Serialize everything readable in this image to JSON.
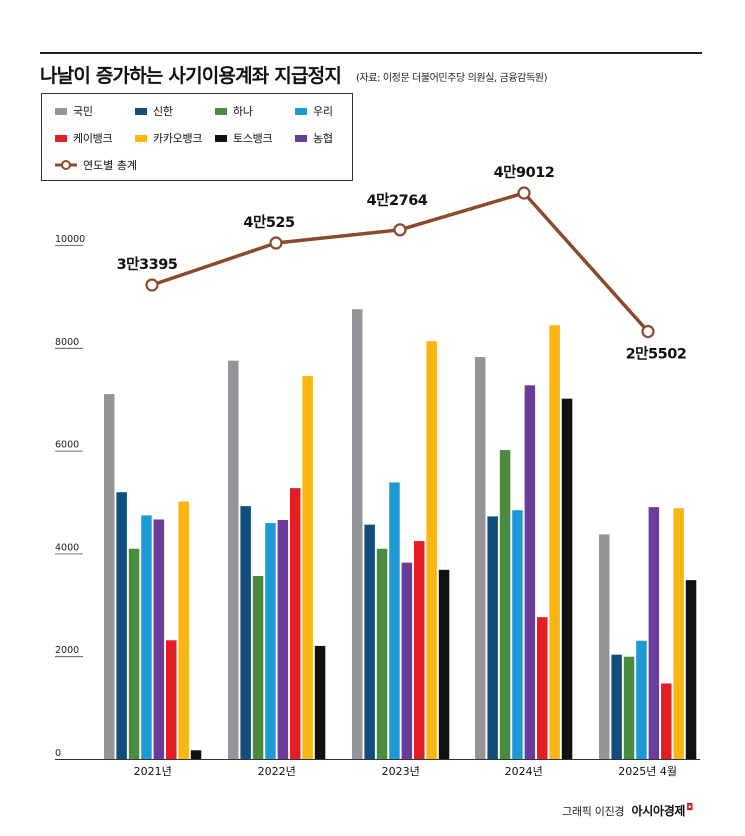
{
  "header": {
    "title": "나날이 증가하는 사기이용계좌 지급정지",
    "source": "(자료: 이정문 더불어민주당 의원실, 금융감독원)"
  },
  "footer": {
    "credit": "그래픽 이진경",
    "brand": "아시아경제"
  },
  "chart_data": {
    "type": "bar",
    "title": "나날이 증가하는 사기이용계좌 지급정지",
    "categories": [
      "2021년",
      "2022년",
      "2023년",
      "2024년",
      "2025년 4월"
    ],
    "ylim": [
      0,
      10000
    ],
    "yticks": [
      "0",
      "2000",
      "4000",
      "6000",
      "8000",
      "10000"
    ],
    "grid": false,
    "legend_position": "top-left",
    "series": [
      {
        "name": "국민",
        "color": "#939598",
        "values": [
          7100,
          7750,
          8750,
          7820,
          4370
        ]
      },
      {
        "name": "신한",
        "color": "#124e7c",
        "values": [
          5190,
          4920,
          4560,
          4720,
          2030
        ]
      },
      {
        "name": "하나",
        "color": "#4a8b3f",
        "values": [
          4090,
          3560,
          4090,
          6010,
          1990
        ]
      },
      {
        "name": "우리",
        "color": "#1d9ad6",
        "values": [
          4740,
          4590,
          5380,
          4840,
          2300
        ]
      },
      {
        "name": "농협",
        "color": "#6a3d9a",
        "values": [
          4660,
          4650,
          3820,
          7270,
          4900
        ]
      },
      {
        "name": "케이뱅크",
        "color": "#e31e24",
        "values": [
          2310,
          5270,
          4240,
          2760,
          1470
        ]
      },
      {
        "name": "카카오뱅크",
        "color": "#fbb614",
        "values": [
          5010,
          7450,
          8130,
          8440,
          4880
        ]
      },
      {
        "name": "토스뱅크",
        "color": "#111111",
        "values": [
          170,
          2200,
          3680,
          7010,
          3480
        ]
      }
    ],
    "totals": {
      "name": "연도별 총계",
      "color": "#8b4a2b",
      "values": [
        33395,
        40525,
        42764,
        49012,
        25502
      ],
      "labels": [
        "3만3395",
        "4만525",
        "4만2764",
        "4만9012",
        "2만5502"
      ]
    }
  }
}
